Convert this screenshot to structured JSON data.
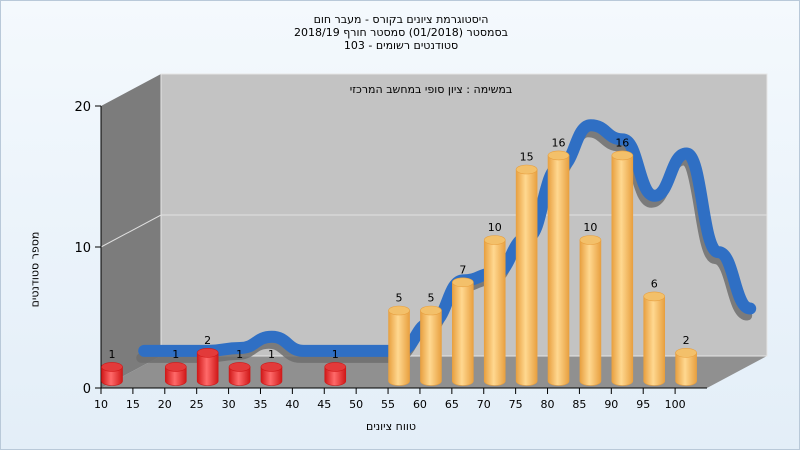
{
  "chart_data": {
    "type": "bar",
    "title_lines": [
      "היסטוגרמת ציונים בקורס - מעבר חום",
      "בסמסטר  (01/2018)  סמסטר חורף 2018/19",
      "סטודנטים רשומים - 103"
    ],
    "subtitle": "במשימה : ציון סופי במחשב המרכזי",
    "xlabel": "טווח ציונים",
    "ylabel": "מספר סטודנטים",
    "x_ticks": [
      "10",
      "15",
      "20",
      "25",
      "30",
      "35",
      "40",
      "45",
      "50",
      "55",
      "60",
      "65",
      "70",
      "75",
      "80",
      "85",
      "90",
      "95",
      "100"
    ],
    "y_ticks": [
      "0",
      "10",
      "20"
    ],
    "ylim": [
      0,
      20
    ],
    "bars": [
      {
        "x": 10,
        "value": 1,
        "label": "1",
        "group": "fail"
      },
      {
        "x": 20,
        "value": 1,
        "label": "1",
        "group": "fail"
      },
      {
        "x": 25,
        "value": 2,
        "label": "2",
        "group": "fail"
      },
      {
        "x": 30,
        "value": 1,
        "label": "1",
        "group": "fail"
      },
      {
        "x": 35,
        "value": 1,
        "label": "1",
        "group": "fail"
      },
      {
        "x": 45,
        "value": 1,
        "label": "1",
        "group": "fail"
      },
      {
        "x": 55,
        "value": 5,
        "label": "5",
        "group": "pass"
      },
      {
        "x": 60,
        "value": 5,
        "label": "5",
        "group": "pass"
      },
      {
        "x": 65,
        "value": 7,
        "label": "7",
        "group": "pass"
      },
      {
        "x": 70,
        "value": 10,
        "label": "10",
        "group": "pass"
      },
      {
        "x": 75,
        "value": 15,
        "label": "15",
        "group": "pass"
      },
      {
        "x": 80,
        "value": 16,
        "label": "16",
        "group": "pass"
      },
      {
        "x": 85,
        "value": 10,
        "label": "10",
        "group": "pass"
      },
      {
        "x": 90,
        "value": 16,
        "label": "16",
        "group": "pass"
      },
      {
        "x": 95,
        "value": 6,
        "label": "6",
        "group": "pass"
      },
      {
        "x": 100,
        "value": 2,
        "label": "2",
        "group": "pass"
      }
    ],
    "trend_points": [
      {
        "x": 10,
        "value": 1
      },
      {
        "x": 15,
        "value": 1
      },
      {
        "x": 20,
        "value": 1
      },
      {
        "x": 25,
        "value": 1.2
      },
      {
        "x": 30,
        "value": 2
      },
      {
        "x": 35,
        "value": 1
      },
      {
        "x": 40,
        "value": 1
      },
      {
        "x": 45,
        "value": 1
      },
      {
        "x": 50,
        "value": 1
      },
      {
        "x": 55,
        "value": 3
      },
      {
        "x": 60,
        "value": 6
      },
      {
        "x": 65,
        "value": 6.5
      },
      {
        "x": 70,
        "value": 9
      },
      {
        "x": 75,
        "value": 14
      },
      {
        "x": 80,
        "value": 17
      },
      {
        "x": 85,
        "value": 16
      },
      {
        "x": 90,
        "value": 12
      },
      {
        "x": 95,
        "value": 15
      },
      {
        "x": 100,
        "value": 8
      },
      {
        "x": 105,
        "value": 4
      }
    ],
    "colors": {
      "fail": "#d01818",
      "fail_light": "#ff6a6a",
      "pass": "#e8a040",
      "pass_light": "#ffd890",
      "trend": "#2f6fc4",
      "trend_shadow": "#6f6f6f",
      "back_wall": "#c3c3c3",
      "left_wall": "#7c7c7c",
      "floor": "#909090"
    }
  }
}
